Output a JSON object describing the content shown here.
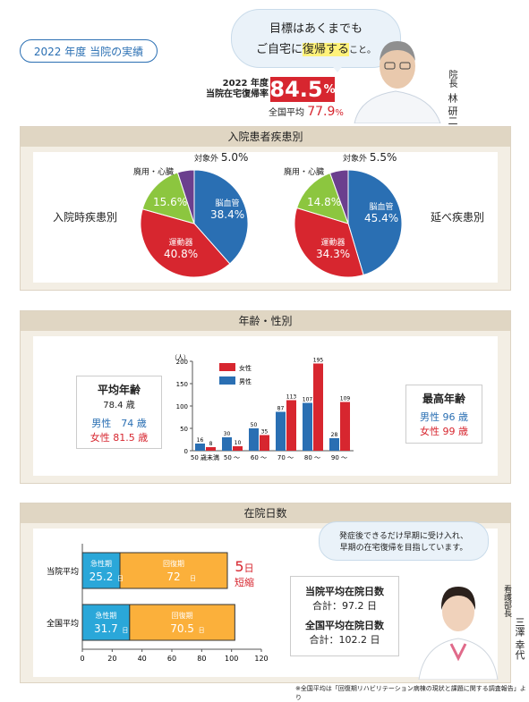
{
  "header": {
    "badge": "2022 年度  当院の実績",
    "bubble_line1": "目標はあくまでも",
    "bubble_line2_a": "ご自宅に",
    "bubble_line2_b": "復帰する",
    "bubble_line2_c": "こと。",
    "rate_label_year": "2022 年度",
    "rate_label_text": "当院在宅復帰率",
    "rate_value": "84.5",
    "rate_unit": "%",
    "national_label": "全国平均",
    "national_value": "77.9",
    "national_unit": "%",
    "director_title": "院長",
    "director_name": "林 研二"
  },
  "disease": {
    "title": "入院患者疾患別",
    "left_label": "入院時疾患別",
    "right_label": "延べ疾患別",
    "label_other": "対象外",
    "label_waste": "廃用・心臓",
    "label_brain": "脳血管",
    "label_motor": "運動器",
    "left": {
      "other": "5.0%",
      "waste": "15.6%",
      "brain": "38.4%",
      "motor": "40.8%"
    },
    "right": {
      "other": "5.5%",
      "waste": "14.8%",
      "brain": "45.4%",
      "motor": "34.3%"
    }
  },
  "age": {
    "title": "年齢・性別",
    "avg_title": "平均年齢",
    "avg_value": "78.4 歳",
    "male_avg": "男性　74 歳",
    "female_avg": "女性  81.5 歳",
    "max_title": "最高年齢",
    "male_max": "男性 96 歳",
    "female_max": "女性 99 歳"
  },
  "stay": {
    "title": "在院日数",
    "bubble1": "発症後できるだけ早期に受け入れ、",
    "bubble2": "早期の在宅復帰を目指しています。",
    "row1_label": "当院平均",
    "row2_label": "全国平均",
    "acute_label": "急性期",
    "recovery_label": "回復期",
    "row1_acute": "25.2",
    "row1_recovery": "72",
    "row2_acute": "31.7",
    "row2_recovery": "70.5",
    "day_unit": "日",
    "shorten_value": "5",
    "shorten_unit": "日",
    "shorten_text": "短縮",
    "hosp_title": "当院平均在院日数",
    "hosp_total": "合計：97.2 日",
    "nat_title": "全国平均在院日数",
    "nat_total": "合計：102.2 日",
    "nurse_title": "看護部長",
    "nurse_name": "三澤 幸代"
  },
  "footnote": "※全国平均は「回復期リハビリテーション病棟の現状と課題に関する調査報告」より",
  "colors": {
    "blue": "#2a6fb3",
    "red": "#d7262f",
    "green": "#8cc63f",
    "purple": "#6b3f8e",
    "orange": "#fbb03b",
    "cyan": "#2aa7d9"
  },
  "chart_data": [
    {
      "type": "pie",
      "title": "入院時疾患別",
      "categories": [
        "脳血管",
        "運動器",
        "廃用・心臓",
        "対象外"
      ],
      "values": [
        38.4,
        40.8,
        15.6,
        5.0
      ]
    },
    {
      "type": "pie",
      "title": "延べ疾患別",
      "categories": [
        "脳血管",
        "運動器",
        "廃用・心臓",
        "対象外"
      ],
      "values": [
        45.4,
        34.3,
        14.8,
        5.5
      ]
    },
    {
      "type": "bar",
      "title": "年齢・性別",
      "ylabel": "（人）",
      "ylim": [
        0,
        200
      ],
      "yticks": [
        0,
        50,
        100,
        150,
        200
      ],
      "categories": [
        "50 歳未満",
        "50 〜",
        "60 〜",
        "70 〜",
        "80 〜",
        "90 〜"
      ],
      "series": [
        {
          "name": "男性",
          "values": [
            16,
            30,
            50,
            87,
            107,
            28
          ]
        },
        {
          "name": "女性",
          "values": [
            8,
            10,
            35,
            113,
            195,
            109
          ]
        }
      ]
    },
    {
      "type": "bar",
      "title": "在院日数",
      "categories": [
        "当院平均",
        "全国平均"
      ],
      "xlim": [
        0,
        120
      ],
      "xticks": [
        0,
        20,
        40,
        60,
        80,
        100,
        120
      ],
      "series": [
        {
          "name": "急性期",
          "values": [
            25.2,
            31.7
          ]
        },
        {
          "name": "回復期",
          "values": [
            72,
            70.5
          ]
        }
      ]
    }
  ]
}
